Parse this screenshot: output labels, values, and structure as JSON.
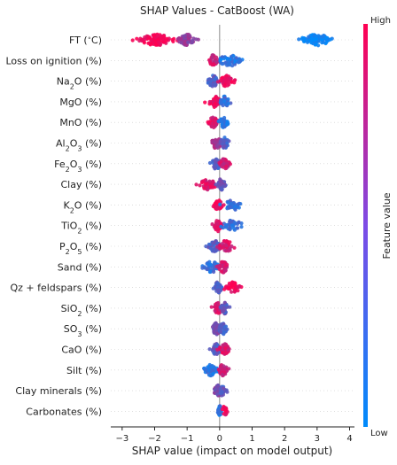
{
  "chart_data": {
    "type": "scatter",
    "title": "SHAP Values - CatBoost (WA)",
    "xlabel": "SHAP value (impact on model output)",
    "xlim": [
      -3.35,
      4.15
    ],
    "xticks": [
      -3,
      -2,
      -1,
      0,
      1,
      2,
      3,
      4
    ],
    "xtick_labels": [
      "−3",
      "−2",
      "−1",
      "0",
      "1",
      "2",
      "3",
      "4"
    ],
    "grid": false,
    "features": [
      {
        "label": "FT (°C)",
        "base": "FT (",
        "deg": "∘",
        "tail": "C)",
        "clusters": [
          {
            "c": -1.95,
            "w": 1.1,
            "col": 0.98,
            "n": 95
          },
          {
            "c": -1.0,
            "w": 0.5,
            "col": 0.55,
            "n": 55
          },
          {
            "c": 3.0,
            "w": 0.95,
            "col": 0.03,
            "n": 95
          }
        ]
      },
      {
        "label": "Loss on ignition (%)",
        "clusters": [
          {
            "c": -0.2,
            "w": 0.3,
            "col": 0.8,
            "n": 30
          },
          {
            "c": 0.3,
            "w": 0.75,
            "col": 0.15,
            "n": 60
          }
        ]
      },
      {
        "label": "Na2O (%)",
        "base": "Na",
        "sub": "2",
        "tail": "O (%)",
        "clusters": [
          {
            "c": -0.2,
            "w": 0.35,
            "col": 0.3,
            "n": 45
          },
          {
            "c": 0.2,
            "w": 0.45,
            "col": 0.9,
            "n": 45
          }
        ]
      },
      {
        "label": "MgO (%)",
        "clusters": [
          {
            "c": -0.15,
            "w": 0.35,
            "col": 0.9,
            "n": 45
          },
          {
            "c": 0.15,
            "w": 0.3,
            "col": 0.2,
            "n": 40
          }
        ]
      },
      {
        "label": "MnO (%)",
        "clusters": [
          {
            "c": -0.2,
            "w": 0.3,
            "col": 0.85,
            "n": 40
          },
          {
            "c": 0.12,
            "w": 0.25,
            "col": 0.15,
            "n": 40
          }
        ]
      },
      {
        "label": "Al2O3 (%)",
        "base": "Al",
        "sub": "2",
        "tail": "O",
        "sub2": "3",
        "tail2": " (%)",
        "clusters": [
          {
            "c": -0.1,
            "w": 0.35,
            "col": 0.65,
            "n": 45
          },
          {
            "c": 0.15,
            "w": 0.3,
            "col": 0.3,
            "n": 40
          }
        ]
      },
      {
        "label": "Fe2O3 (%)",
        "base": "Fe",
        "sub": "2",
        "tail": "O",
        "sub2": "3",
        "tail2": " (%)",
        "clusters": [
          {
            "c": -0.1,
            "w": 0.35,
            "col": 0.3,
            "n": 45
          },
          {
            "c": 0.15,
            "w": 0.3,
            "col": 0.8,
            "n": 40
          }
        ]
      },
      {
        "label": "Clay (%)",
        "clusters": [
          {
            "c": -0.35,
            "w": 0.55,
            "col": 0.85,
            "n": 45
          },
          {
            "c": 0.05,
            "w": 0.25,
            "col": 0.4,
            "n": 40
          }
        ]
      },
      {
        "label": "K2O (%)",
        "base": "K",
        "sub": "2",
        "tail": "O (%)",
        "clusters": [
          {
            "c": -0.05,
            "w": 0.25,
            "col": 0.95,
            "n": 50
          },
          {
            "c": 0.4,
            "w": 0.55,
            "col": 0.2,
            "n": 35
          }
        ]
      },
      {
        "label": "TiO2 (%)",
        "base": "TiO",
        "sub": "2",
        "tail": " (%)",
        "clusters": [
          {
            "c": -0.05,
            "w": 0.25,
            "col": 0.9,
            "n": 45
          },
          {
            "c": 0.4,
            "w": 0.65,
            "col": 0.2,
            "n": 40
          }
        ]
      },
      {
        "label": "P2O5 (%)",
        "base": "P",
        "sub": "2",
        "tail": "O",
        "sub2": "5",
        "tail2": " (%)",
        "clusters": [
          {
            "c": -0.15,
            "w": 0.4,
            "col": 0.35,
            "n": 45
          },
          {
            "c": 0.2,
            "w": 0.5,
            "col": 0.85,
            "n": 40
          }
        ]
      },
      {
        "label": "Sand (%)",
        "clusters": [
          {
            "c": -0.25,
            "w": 0.5,
            "col": 0.2,
            "n": 45
          },
          {
            "c": 0.1,
            "w": 0.35,
            "col": 0.8,
            "n": 45
          }
        ]
      },
      {
        "label": "Qz + feldspars (%)",
        "clusters": [
          {
            "c": -0.05,
            "w": 0.25,
            "col": 0.3,
            "n": 45
          },
          {
            "c": 0.4,
            "w": 0.5,
            "col": 0.95,
            "n": 40
          }
        ]
      },
      {
        "label": "SiO2 (%)",
        "base": "SiO",
        "sub": "2",
        "tail": " (%)",
        "clusters": [
          {
            "c": -0.05,
            "w": 0.3,
            "col": 0.85,
            "n": 45
          },
          {
            "c": 0.15,
            "w": 0.25,
            "col": 0.35,
            "n": 40
          }
        ]
      },
      {
        "label": "SO3 (%)",
        "base": "SO",
        "sub": "3",
        "tail": " (%)",
        "clusters": [
          {
            "c": -0.1,
            "w": 0.3,
            "col": 0.45,
            "n": 45
          },
          {
            "c": 0.1,
            "w": 0.25,
            "col": 0.3,
            "n": 40
          }
        ]
      },
      {
        "label": "CaO (%)",
        "clusters": [
          {
            "c": -0.1,
            "w": 0.3,
            "col": 0.35,
            "n": 45
          },
          {
            "c": 0.15,
            "w": 0.3,
            "col": 0.85,
            "n": 40
          }
        ]
      },
      {
        "label": "Silt (%)",
        "clusters": [
          {
            "c": -0.3,
            "w": 0.5,
            "col": 0.15,
            "n": 45
          },
          {
            "c": 0.1,
            "w": 0.3,
            "col": 0.8,
            "n": 40
          }
        ]
      },
      {
        "label": "Clay minerals (%)",
        "clusters": [
          {
            "c": -0.05,
            "w": 0.25,
            "col": 0.5,
            "n": 45
          },
          {
            "c": 0.1,
            "w": 0.2,
            "col": 0.35,
            "n": 30
          }
        ]
      },
      {
        "label": "Carbonates (%)",
        "clusters": [
          {
            "c": 0.0,
            "w": 0.1,
            "col": 0.15,
            "n": 35
          },
          {
            "c": 0.15,
            "w": 0.15,
            "col": 0.95,
            "n": 15
          }
        ]
      }
    ],
    "colorbar": {
      "label": "Feature value",
      "high": "High",
      "low": "Low",
      "low_color": "#008bfb",
      "high_color": "#ff0052"
    }
  }
}
